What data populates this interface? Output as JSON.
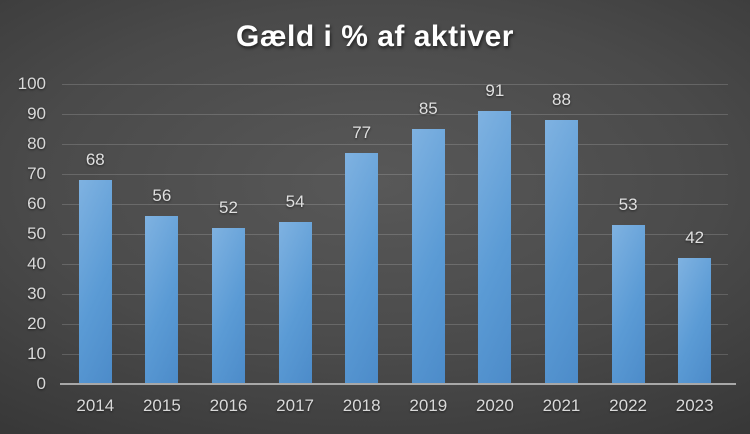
{
  "title": "Gæld i % af aktiver",
  "chart_data": {
    "type": "bar",
    "title": "Gæld i % af aktiver",
    "categories": [
      "2014",
      "2015",
      "2016",
      "2017",
      "2018",
      "2019",
      "2020",
      "2021",
      "2022",
      "2023"
    ],
    "values": [
      68,
      56,
      52,
      54,
      77,
      85,
      91,
      88,
      53,
      42
    ],
    "xlabel": "",
    "ylabel": "",
    "ylim": [
      0,
      100
    ],
    "yticks": [
      0,
      10,
      20,
      30,
      40,
      50,
      60,
      70,
      80,
      90,
      100
    ],
    "grid": true,
    "data_labels": true,
    "legend": "none"
  },
  "colors": {
    "bar_light": "#7FB2E1",
    "bar_mid": "#5B9BD5",
    "bar_dark": "#4C8BC9",
    "gridline": "rgba(255,255,255,0.16)",
    "axis_line": "#A8A8A8",
    "tick_label": "#D9D9D9",
    "data_label": "#E0E0E0",
    "title": "#FFFFFF"
  }
}
